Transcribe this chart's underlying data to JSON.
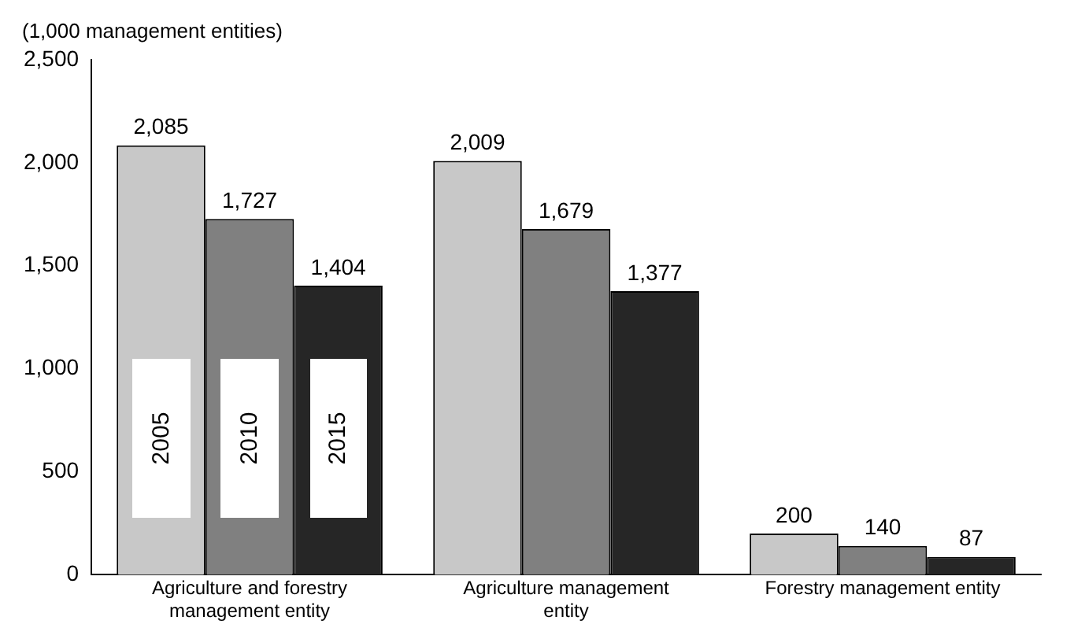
{
  "chart_data": {
    "type": "bar",
    "ylabel": "(1,000 management entities)",
    "categories": [
      "Agriculture and forestry management entity",
      "Agriculture management entity",
      "Forestry management entity"
    ],
    "series": [
      {
        "name": "2005",
        "color": "#c8c8c8",
        "values": [
          2085,
          2009,
          200
        ],
        "value_labels": [
          "2,085",
          "2,009",
          "200"
        ]
      },
      {
        "name": "2010",
        "color": "#808080",
        "values": [
          1727,
          1679,
          140
        ],
        "value_labels": [
          "1,727",
          "1,679",
          "140"
        ]
      },
      {
        "name": "2015",
        "color": "#262626",
        "values": [
          1404,
          1377,
          87
        ],
        "value_labels": [
          "1,404",
          "1,377",
          "87"
        ]
      }
    ],
    "ylim": [
      0,
      2500
    ],
    "yticks": [
      0,
      500,
      {
        "value": 1000,
        "label": "1,000"
      },
      {
        "value": 1500,
        "label": "1,500"
      },
      {
        "value": 2000,
        "label": "2,000"
      },
      {
        "value": 2500,
        "label": "2,500"
      }
    ],
    "grid": false
  }
}
